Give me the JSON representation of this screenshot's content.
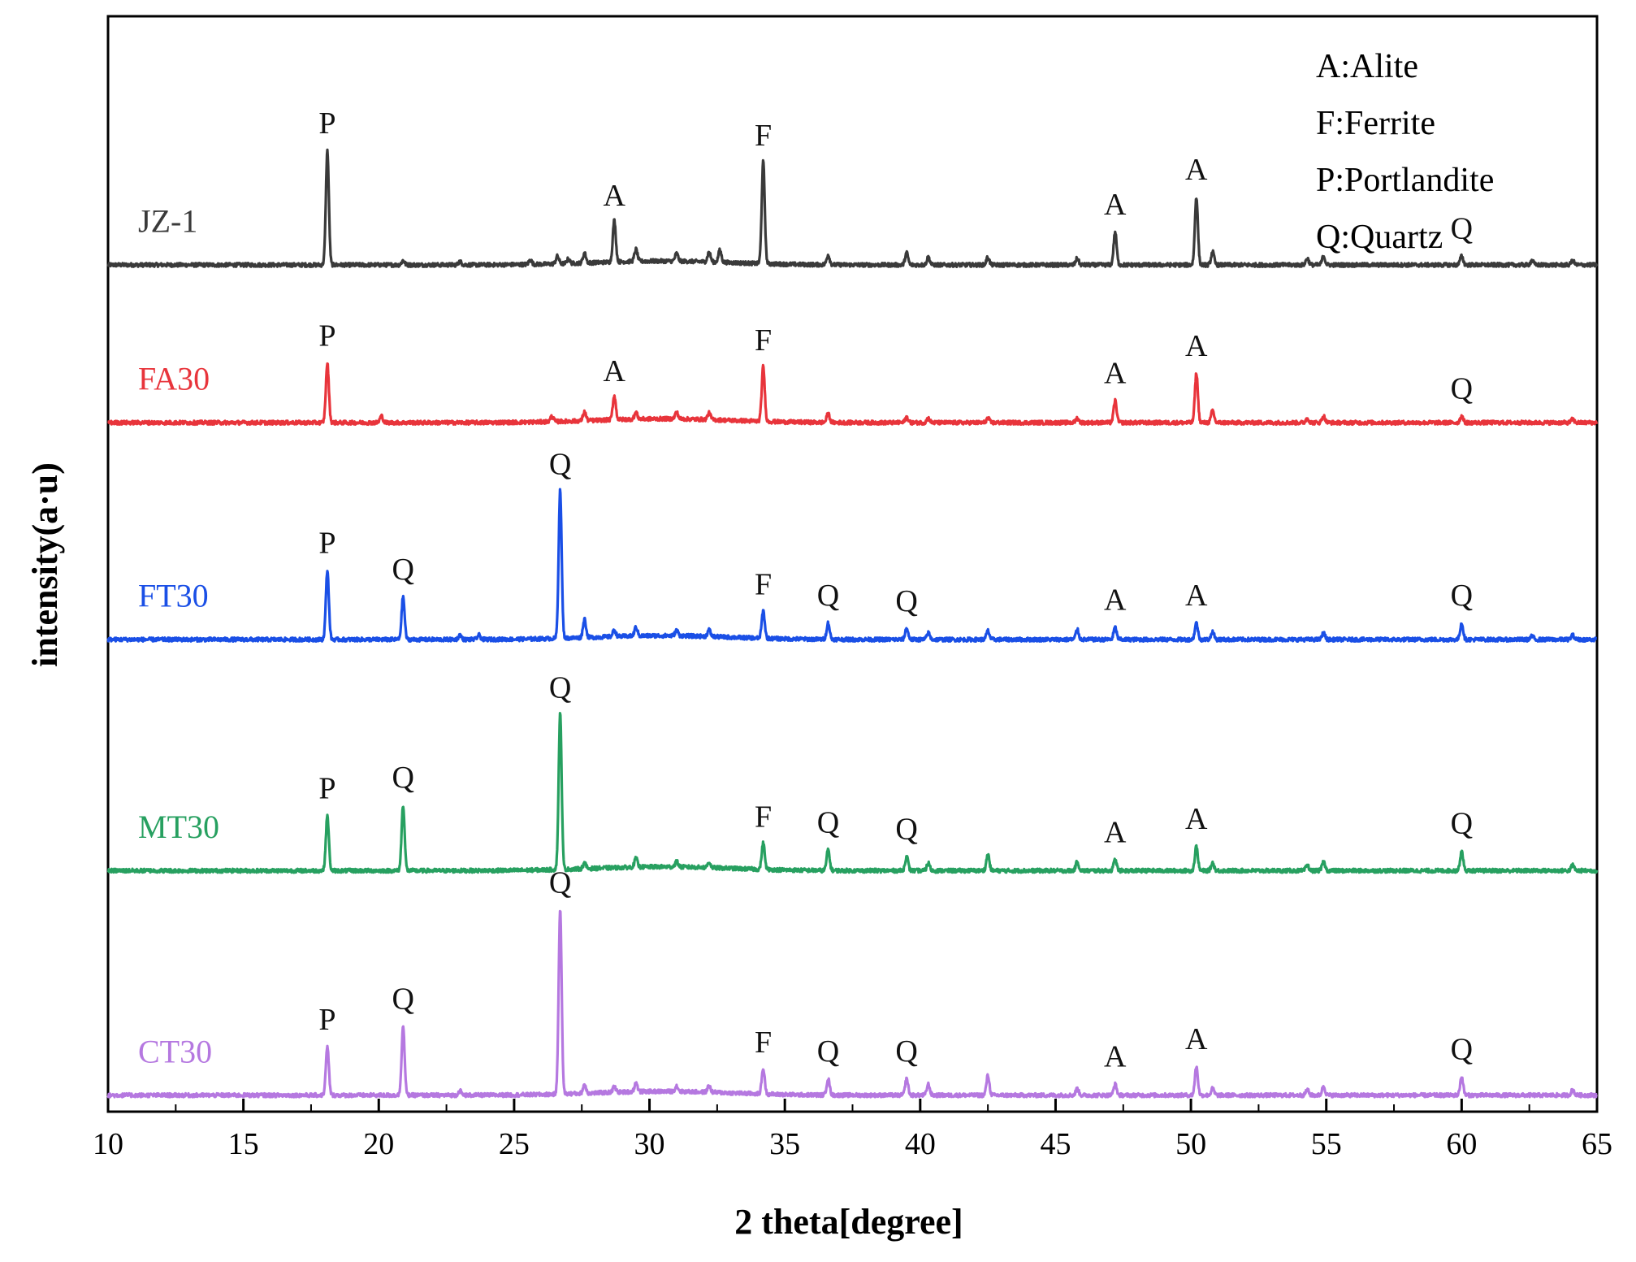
{
  "chart_data": {
    "type": "line",
    "title": "",
    "xlabel": "2 theta[degree]",
    "ylabel": "intensity(a·u)",
    "xlim": [
      10,
      65
    ],
    "ylim": [
      0,
      100
    ],
    "xticks": [
      10,
      15,
      20,
      25,
      30,
      35,
      40,
      45,
      50,
      55,
      60,
      65
    ],
    "tick_labels": [
      "10",
      "15",
      "20",
      "25",
      "30",
      "35",
      "40",
      "45",
      "50",
      "55",
      "60",
      "65"
    ],
    "legend": {
      "position": "top-right",
      "entries": [
        "A:Alite",
        "F:Ferrite",
        "P:Portlandite",
        "Q:Quartz"
      ]
    },
    "series": [
      {
        "name": "JZ-1",
        "color": "#3a3a3a",
        "baseline": 77.3,
        "peaks": [
          [
            18.1,
            10.4
          ],
          [
            20.9,
            0.4
          ],
          [
            23.0,
            0.3
          ],
          [
            25.6,
            0.4
          ],
          [
            26.6,
            0.7
          ],
          [
            27.0,
            0.4
          ],
          [
            27.6,
            0.9
          ],
          [
            28.7,
            3.8
          ],
          [
            29.5,
            1.1
          ],
          [
            31.0,
            0.7
          ],
          [
            32.2,
            0.9
          ],
          [
            32.6,
            1.1
          ],
          [
            34.2,
            9.3
          ],
          [
            36.6,
            0.9
          ],
          [
            39.5,
            1.1
          ],
          [
            40.3,
            0.7
          ],
          [
            42.5,
            0.7
          ],
          [
            45.8,
            0.6
          ],
          [
            47.2,
            3.0
          ],
          [
            50.2,
            6.2
          ],
          [
            50.8,
            1.2
          ],
          [
            54.3,
            0.6
          ],
          [
            54.9,
            0.8
          ],
          [
            60.0,
            0.8
          ],
          [
            62.6,
            0.4
          ],
          [
            64.1,
            0.4
          ]
        ],
        "annotations": [
          {
            "x": 18.1,
            "label": "P"
          },
          {
            "x": 28.7,
            "label": "A"
          },
          {
            "x": 34.2,
            "label": "F"
          },
          {
            "x": 47.2,
            "label": "A"
          },
          {
            "x": 50.2,
            "label": "A"
          },
          {
            "x": 60.0,
            "label": "Q"
          }
        ]
      },
      {
        "name": "FA30",
        "color": "#e8343b",
        "baseline": 62.9,
        "peaks": [
          [
            18.1,
            5.4
          ],
          [
            20.1,
            0.6
          ],
          [
            26.4,
            0.5
          ],
          [
            27.6,
            0.8
          ],
          [
            28.7,
            2.2
          ],
          [
            29.5,
            0.6
          ],
          [
            31.0,
            0.6
          ],
          [
            32.2,
            0.6
          ],
          [
            34.2,
            5.0
          ],
          [
            36.6,
            0.8
          ],
          [
            39.5,
            0.5
          ],
          [
            40.3,
            0.4
          ],
          [
            42.5,
            0.4
          ],
          [
            45.8,
            0.4
          ],
          [
            47.2,
            2.0
          ],
          [
            50.2,
            4.5
          ],
          [
            50.8,
            1.1
          ],
          [
            54.3,
            0.4
          ],
          [
            54.9,
            0.6
          ],
          [
            60.0,
            0.6
          ],
          [
            64.1,
            0.3
          ]
        ],
        "annotations": [
          {
            "x": 18.1,
            "label": "P"
          },
          {
            "x": 28.7,
            "label": "A"
          },
          {
            "x": 34.2,
            "label": "F"
          },
          {
            "x": 47.2,
            "label": "A"
          },
          {
            "x": 50.2,
            "label": "A"
          },
          {
            "x": 60.0,
            "label": "Q"
          }
        ]
      },
      {
        "name": "FT30",
        "color": "#1a4fe6",
        "baseline": 43.1,
        "peaks": [
          [
            18.1,
            6.3
          ],
          [
            20.9,
            3.9
          ],
          [
            23.0,
            0.4
          ],
          [
            23.7,
            0.4
          ],
          [
            26.7,
            13.5
          ],
          [
            27.6,
            1.7
          ],
          [
            28.7,
            0.6
          ],
          [
            29.5,
            0.8
          ],
          [
            31.0,
            0.5
          ],
          [
            32.2,
            0.6
          ],
          [
            34.2,
            2.5
          ],
          [
            36.6,
            1.5
          ],
          [
            39.5,
            1.0
          ],
          [
            40.3,
            0.6
          ],
          [
            42.5,
            0.8
          ],
          [
            45.8,
            0.9
          ],
          [
            47.2,
            1.1
          ],
          [
            50.2,
            1.5
          ],
          [
            50.8,
            0.7
          ],
          [
            54.9,
            0.6
          ],
          [
            60.0,
            1.5
          ],
          [
            62.6,
            0.3
          ],
          [
            64.1,
            0.4
          ]
        ],
        "annotations": [
          {
            "x": 18.1,
            "label": "P"
          },
          {
            "x": 20.9,
            "label": "Q"
          },
          {
            "x": 26.7,
            "label": "Q"
          },
          {
            "x": 34.2,
            "label": "F"
          },
          {
            "x": 36.6,
            "label": "Q"
          },
          {
            "x": 39.5,
            "label": "Q"
          },
          {
            "x": 47.2,
            "label": "A"
          },
          {
            "x": 50.2,
            "label": "A"
          },
          {
            "x": 60.0,
            "label": "Q"
          }
        ]
      },
      {
        "name": "MT30",
        "color": "#27a060",
        "baseline": 22.0,
        "peaks": [
          [
            18.1,
            5.0
          ],
          [
            20.9,
            6.0
          ],
          [
            26.7,
            14.2
          ],
          [
            27.6,
            0.5
          ],
          [
            29.5,
            0.8
          ],
          [
            31.0,
            0.5
          ],
          [
            32.2,
            0.5
          ],
          [
            34.2,
            2.4
          ],
          [
            36.6,
            1.9
          ],
          [
            39.5,
            1.3
          ],
          [
            40.3,
            0.7
          ],
          [
            42.5,
            1.5
          ],
          [
            45.8,
            0.8
          ],
          [
            47.2,
            1.0
          ],
          [
            50.2,
            2.2
          ],
          [
            50.8,
            0.7
          ],
          [
            54.3,
            0.5
          ],
          [
            54.9,
            0.8
          ],
          [
            60.0,
            1.8
          ],
          [
            64.1,
            0.5
          ]
        ],
        "annotations": [
          {
            "x": 18.1,
            "label": "P"
          },
          {
            "x": 20.9,
            "label": "Q"
          },
          {
            "x": 26.7,
            "label": "Q"
          },
          {
            "x": 34.2,
            "label": "F"
          },
          {
            "x": 36.6,
            "label": "Q"
          },
          {
            "x": 39.5,
            "label": "Q"
          },
          {
            "x": 47.2,
            "label": "A"
          },
          {
            "x": 50.2,
            "label": "A"
          },
          {
            "x": 60.0,
            "label": "Q"
          }
        ]
      },
      {
        "name": "CT30",
        "color": "#b578e0",
        "baseline": 1.5,
        "peaks": [
          [
            18.1,
            4.4
          ],
          [
            20.9,
            6.3
          ],
          [
            23.0,
            0.4
          ],
          [
            26.7,
            16.9
          ],
          [
            27.6,
            0.8
          ],
          [
            28.7,
            0.5
          ],
          [
            29.5,
            0.8
          ],
          [
            31.0,
            0.5
          ],
          [
            32.2,
            0.6
          ],
          [
            34.2,
            2.3
          ],
          [
            36.6,
            1.5
          ],
          [
            39.5,
            1.5
          ],
          [
            40.3,
            1.0
          ],
          [
            42.5,
            1.8
          ],
          [
            45.8,
            0.6
          ],
          [
            47.2,
            1.0
          ],
          [
            50.2,
            2.6
          ],
          [
            50.8,
            0.6
          ],
          [
            54.3,
            0.5
          ],
          [
            54.9,
            0.8
          ],
          [
            60.0,
            1.7
          ],
          [
            64.1,
            0.5
          ]
        ],
        "annotations": [
          {
            "x": 18.1,
            "label": "P"
          },
          {
            "x": 20.9,
            "label": "Q"
          },
          {
            "x": 26.7,
            "label": "Q"
          },
          {
            "x": 34.2,
            "label": "F"
          },
          {
            "x": 36.6,
            "label": "Q"
          },
          {
            "x": 39.5,
            "label": "Q"
          },
          {
            "x": 47.2,
            "label": "A"
          },
          {
            "x": 50.2,
            "label": "A"
          },
          {
            "x": 60.0,
            "label": "Q"
          }
        ]
      }
    ]
  }
}
